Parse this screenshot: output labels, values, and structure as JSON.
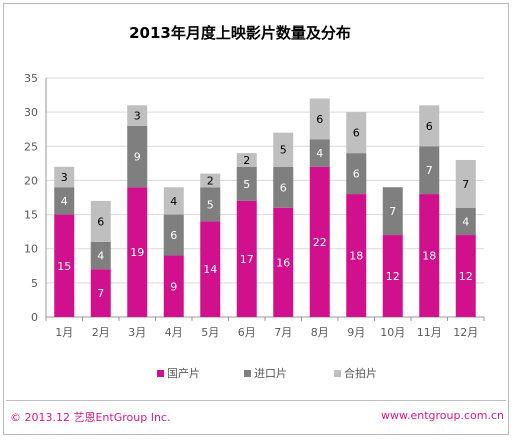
{
  "chart_data": {
    "type": "bar",
    "stacked": true,
    "title": "2013年月度上映影片数量及分布",
    "categories": [
      "1月",
      "2月",
      "3月",
      "4月",
      "5月",
      "6月",
      "7月",
      "8月",
      "9月",
      "10月",
      "11月",
      "12月"
    ],
    "series": [
      {
        "name": "国产片",
        "color": "#d0108c",
        "label_color": "#ffffff",
        "values": [
          15,
          7,
          19,
          9,
          14,
          17,
          16,
          22,
          18,
          12,
          18,
          12
        ]
      },
      {
        "name": "进口片",
        "color": "#7f7f7f",
        "label_color": "#ffffff",
        "values": [
          4,
          4,
          9,
          6,
          5,
          5,
          6,
          4,
          6,
          7,
          7,
          4
        ]
      },
      {
        "name": "合拍片",
        "color": "#bfbfbf",
        "label_color": "#000000",
        "values": [
          3,
          6,
          3,
          4,
          2,
          2,
          5,
          6,
          6,
          0,
          6,
          7
        ]
      }
    ],
    "ylim": [
      0,
      35
    ],
    "yticks": [
      "0",
      "5",
      "10",
      "15",
      "20",
      "25",
      "30",
      "35"
    ],
    "grid": true,
    "legend": "bottom"
  },
  "footer": {
    "copyright": "© 2013.12  艺恩EntGroup Inc.",
    "website": "www.entgroup.com.cn"
  }
}
